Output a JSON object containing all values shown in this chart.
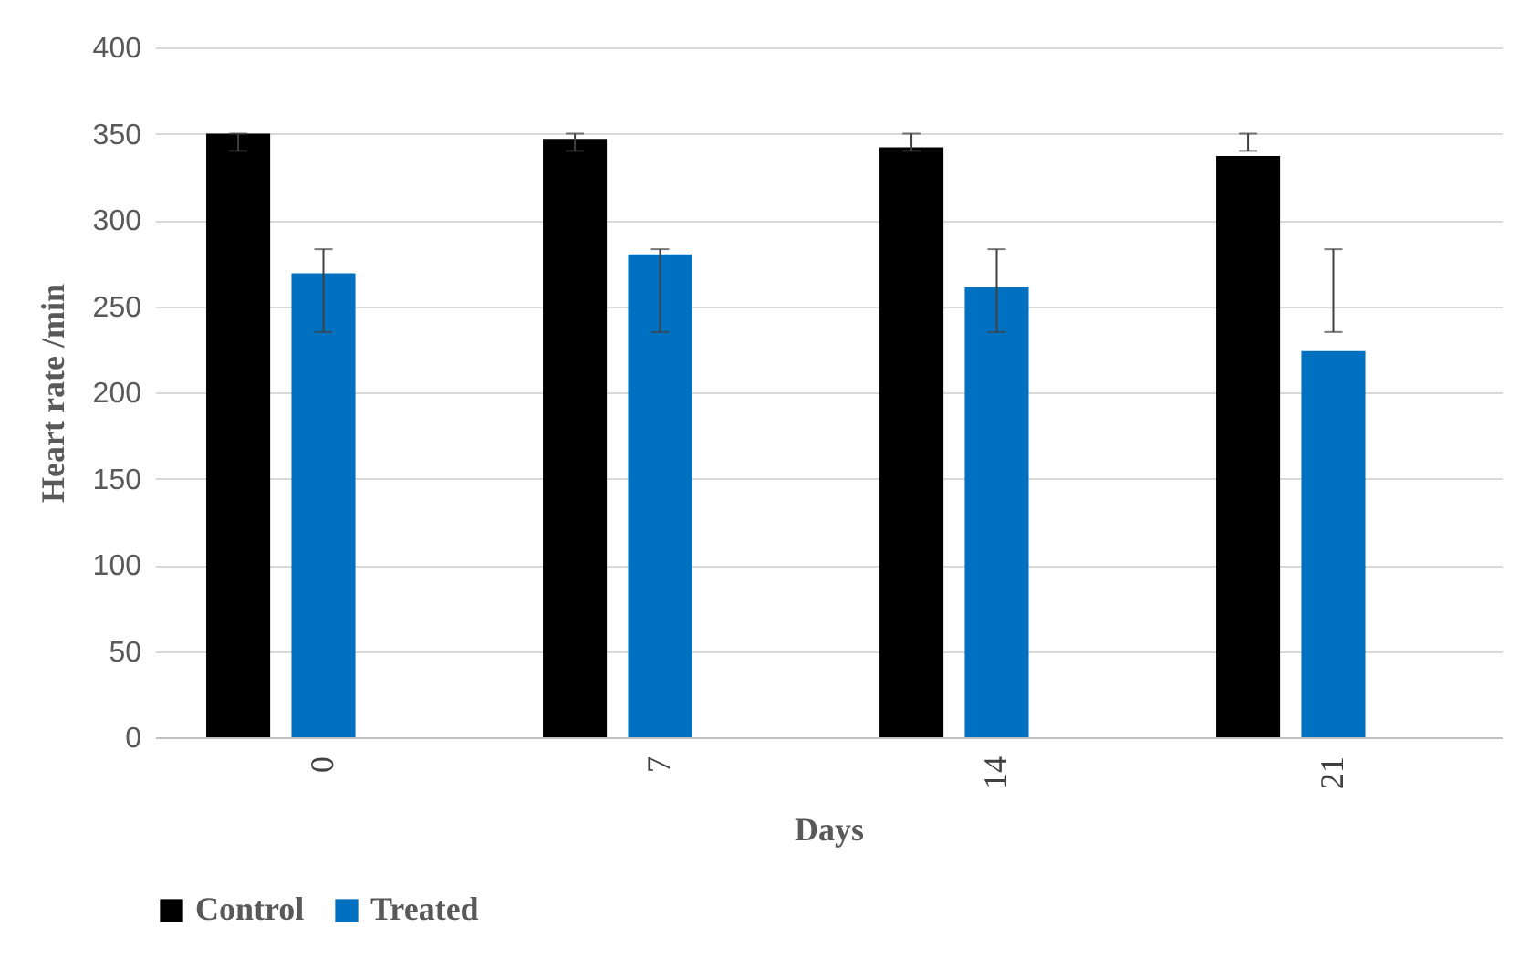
{
  "chart_data": {
    "type": "bar",
    "xlabel": "Days",
    "ylabel": "Heart rate /min",
    "categories": [
      "0",
      "7",
      "14",
      "21"
    ],
    "series": [
      {
        "name": "Control",
        "color": "#000000",
        "values": [
          350,
          347,
          342,
          337
        ],
        "errors": [
          [
            340,
            350
          ],
          [
            340,
            350
          ],
          [
            340,
            350
          ],
          [
            340,
            350
          ]
        ]
      },
      {
        "name": "Treated",
        "color": "#0070c0",
        "values": [
          269,
          280,
          261,
          224
        ],
        "errors": [
          [
            235,
            283
          ],
          [
            235,
            283
          ],
          [
            235,
            283
          ],
          [
            235,
            283
          ]
        ]
      }
    ],
    "ylim": [
      0,
      400
    ],
    "yticks": [
      0,
      50,
      100,
      150,
      200,
      250,
      300,
      350,
      400
    ],
    "grid": "y",
    "legend": "bottom"
  }
}
